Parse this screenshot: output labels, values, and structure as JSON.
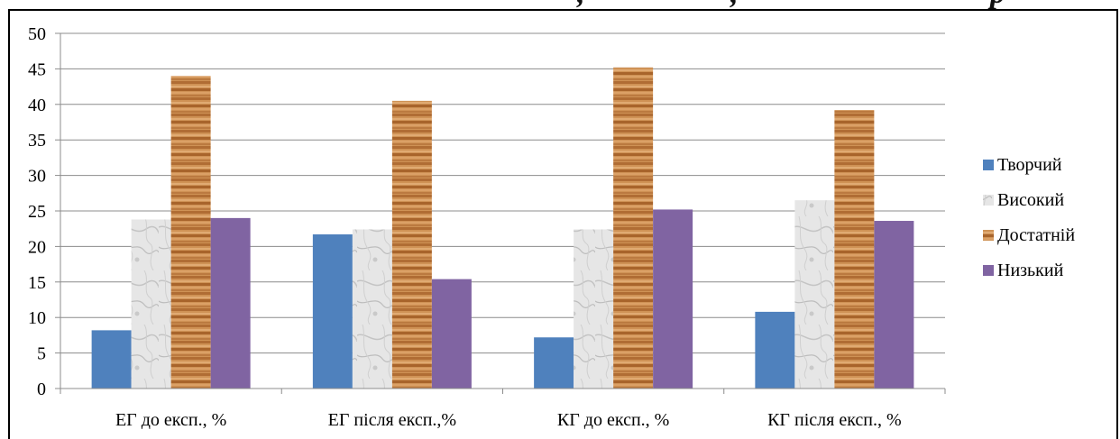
{
  "chart_data": {
    "type": "bar",
    "categories": [
      "ЕГ до експ., %",
      "ЕГ після експ.,%",
      "КГ до експ., %",
      "КГ після експ., %"
    ],
    "series": [
      {
        "name": "Творчий",
        "values": [
          8.2,
          21.7,
          7.2,
          10.8
        ],
        "color": "#4f81bd",
        "fill": "solid"
      },
      {
        "name": "Високий",
        "values": [
          23.8,
          22.4,
          22.4,
          26.5
        ],
        "color": "#d9d9d9",
        "fill": "marble"
      },
      {
        "name": "Достатній",
        "values": [
          44.0,
          40.5,
          45.2,
          39.2
        ],
        "color": "#c8874a",
        "fill": "wood"
      },
      {
        "name": "Низький",
        "values": [
          24.0,
          15.4,
          25.2,
          23.6
        ],
        "color": "#8064a2",
        "fill": "solid"
      }
    ],
    "ylim": [
      0,
      50
    ],
    "yticks": [
      "0",
      "5",
      "10",
      "15",
      "20",
      "25",
      "30",
      "35",
      "40",
      "45",
      "50"
    ],
    "grid": true,
    "legend_position": "right",
    "xlabel": "",
    "ylabel": ""
  },
  "heading_fragments": [
    ",",
    ",",
    "р"
  ]
}
